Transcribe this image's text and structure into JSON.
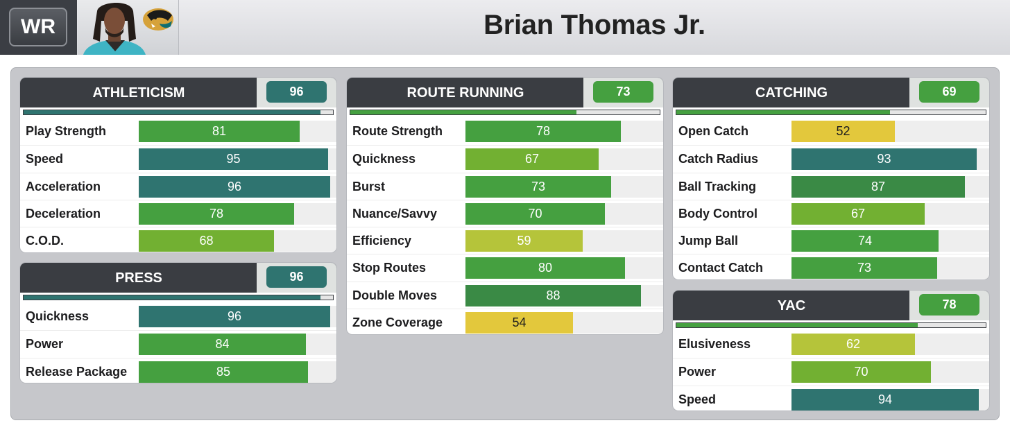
{
  "header": {
    "position": "WR",
    "player_name": "Brian Thomas Jr."
  },
  "colors": {
    "teal": "#2f7470",
    "dark_green": "#3a8a45",
    "green": "#45a040",
    "lime": "#72b032",
    "yellow_lime": "#b5c43a",
    "yellow": "#e3c83c"
  },
  "cards": {
    "athleticism": {
      "title": "ATHLETICISM",
      "score": "96",
      "overall_pct": 96,
      "color": "teal",
      "rows": [
        {
          "label": "Play Strength",
          "value": "81",
          "color": "green"
        },
        {
          "label": "Speed",
          "value": "95",
          "color": "teal"
        },
        {
          "label": "Acceleration",
          "value": "96",
          "color": "teal"
        },
        {
          "label": "Deceleration",
          "value": "78",
          "color": "green"
        },
        {
          "label": "C.O.D.",
          "value": "68",
          "color": "lime"
        }
      ]
    },
    "press": {
      "title": "PRESS",
      "score": "96",
      "overall_pct": 96,
      "color": "teal",
      "rows": [
        {
          "label": "Quickness",
          "value": "96",
          "color": "teal"
        },
        {
          "label": "Power",
          "value": "84",
          "color": "green"
        },
        {
          "label": "Release Package",
          "value": "85",
          "color": "green"
        }
      ]
    },
    "route_running": {
      "title": "ROUTE RUNNING",
      "score": "73",
      "overall_pct": 73,
      "color": "green",
      "rows": [
        {
          "label": "Route Strength",
          "value": "78",
          "color": "green"
        },
        {
          "label": "Quickness",
          "value": "67",
          "color": "lime"
        },
        {
          "label": "Burst",
          "value": "73",
          "color": "green"
        },
        {
          "label": "Nuance/Savvy",
          "value": "70",
          "color": "green"
        },
        {
          "label": "Efficiency",
          "value": "59",
          "color": "yellow_lime"
        },
        {
          "label": "Stop Routes",
          "value": "80",
          "color": "green"
        },
        {
          "label": "Double Moves",
          "value": "88",
          "color": "dark_green"
        },
        {
          "label": "Zone Coverage",
          "value": "54",
          "color": "yellow"
        }
      ]
    },
    "catching": {
      "title": "CATCHING",
      "score": "69",
      "overall_pct": 69,
      "color": "lime",
      "rows": [
        {
          "label": "Open Catch",
          "value": "52",
          "color": "yellow"
        },
        {
          "label": "Catch Radius",
          "value": "93",
          "color": "teal"
        },
        {
          "label": "Ball Tracking",
          "value": "87",
          "color": "dark_green"
        },
        {
          "label": "Body Control",
          "value": "67",
          "color": "lime"
        },
        {
          "label": "Jump Ball",
          "value": "74",
          "color": "green"
        },
        {
          "label": "Contact Catch",
          "value": "73",
          "color": "green"
        }
      ]
    },
    "yac": {
      "title": "YAC",
      "score": "78",
      "overall_pct": 78,
      "color": "green",
      "rows": [
        {
          "label": "Elusiveness",
          "value": "62",
          "color": "yellow_lime"
        },
        {
          "label": "Power",
          "value": "70",
          "color": "lime"
        },
        {
          "label": "Speed",
          "value": "94",
          "color": "teal"
        }
      ]
    }
  }
}
